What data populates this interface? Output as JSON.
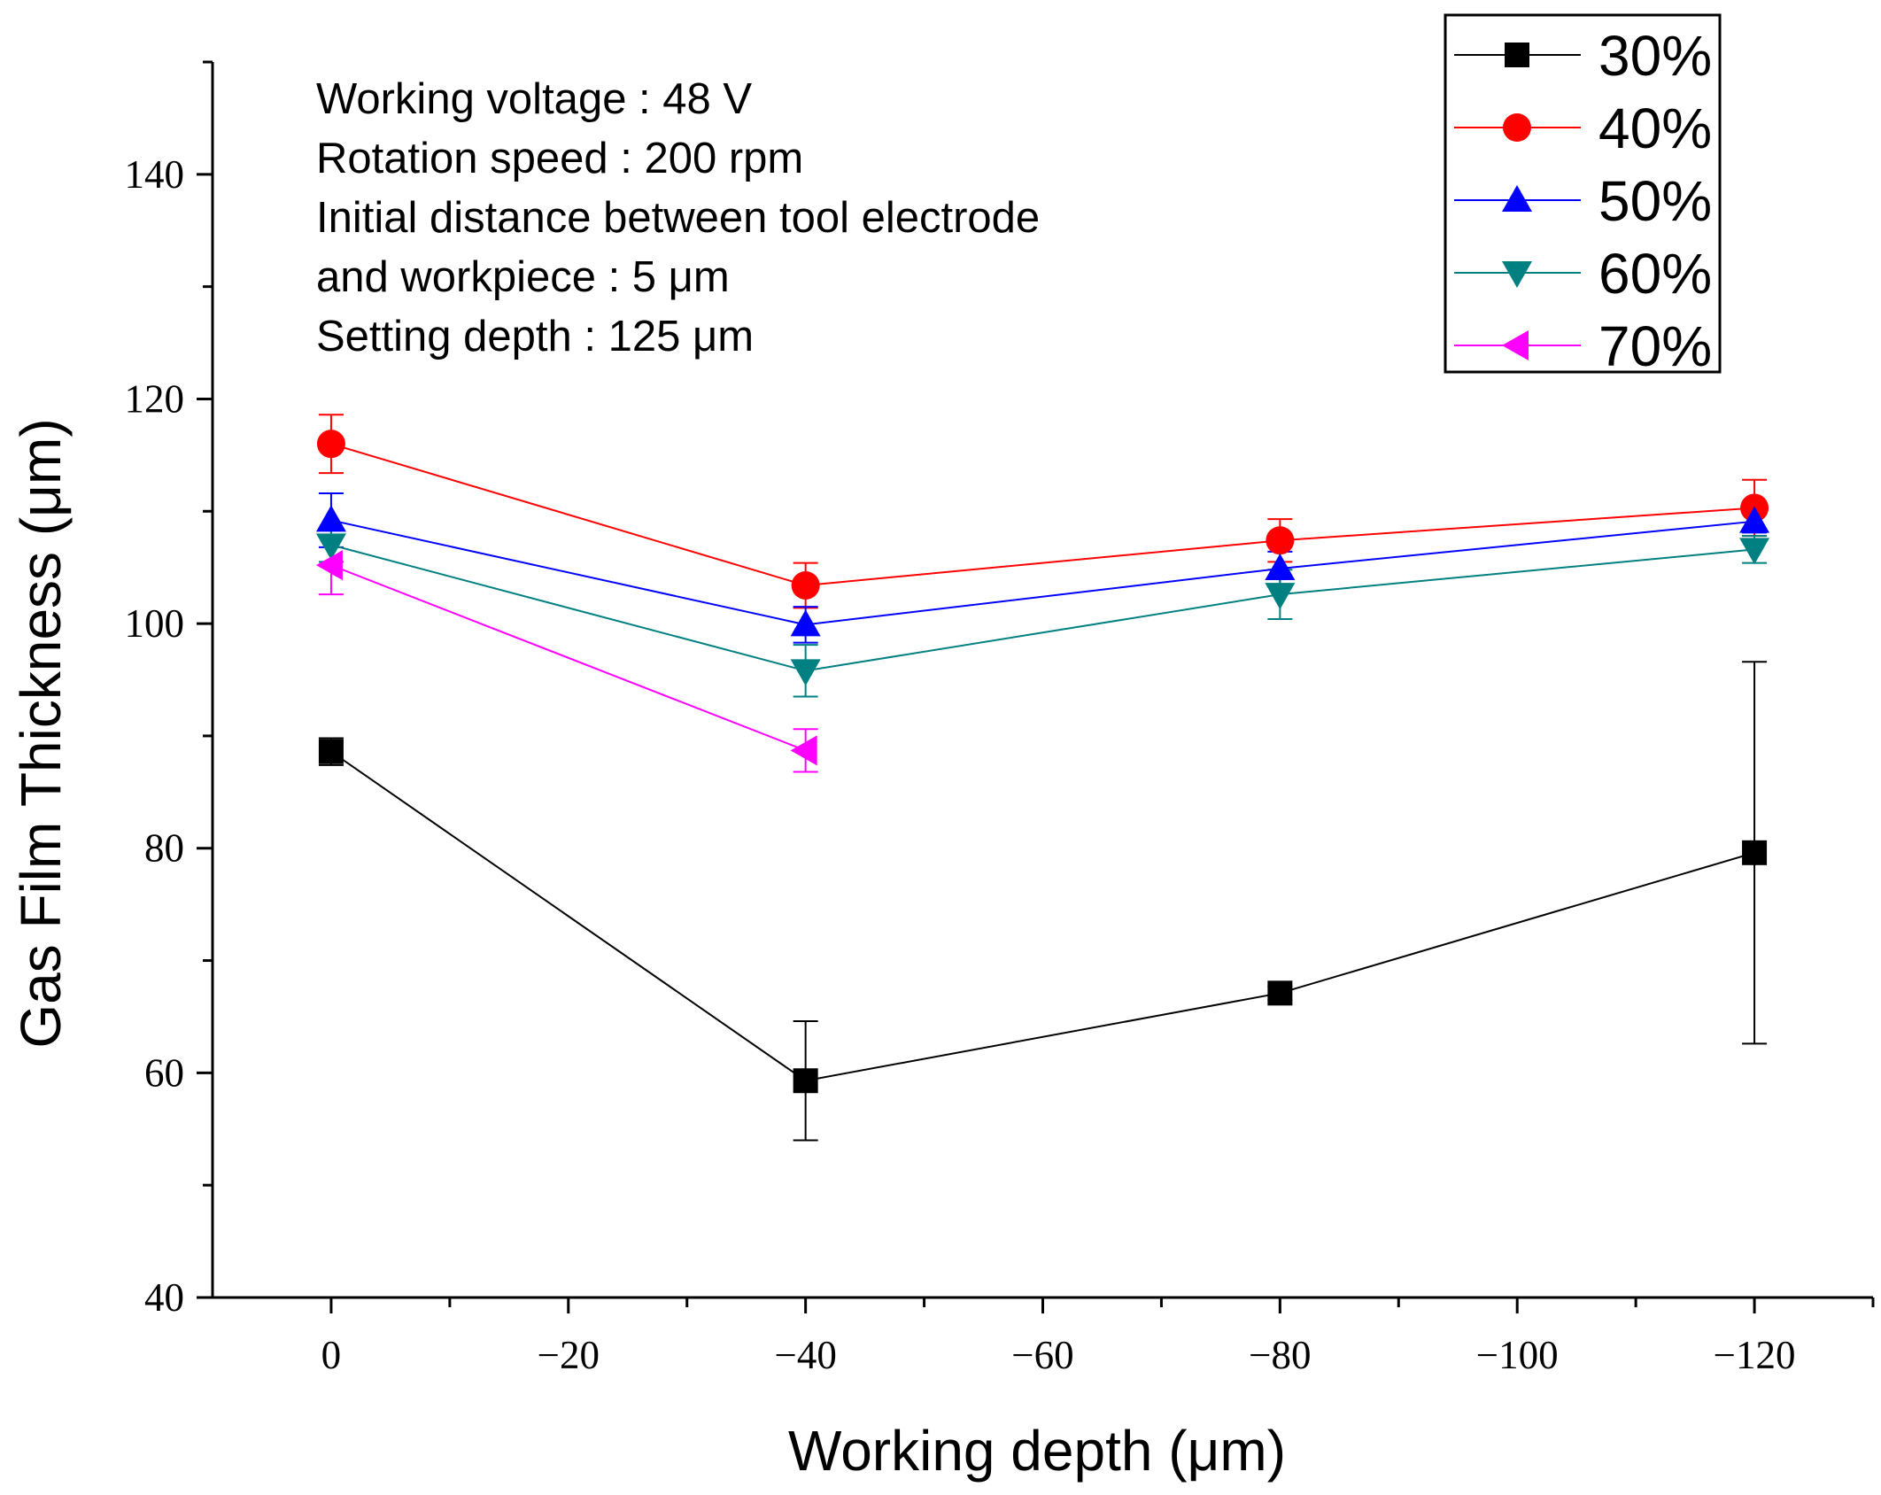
{
  "chart_data": {
    "type": "line",
    "title": "",
    "xlabel": "Working depth (μm)",
    "ylabel": "Gas Film Thickness (μm)",
    "x": [
      0,
      -40,
      -80,
      -120
    ],
    "xlim": [
      10,
      -130
    ],
    "ylim": [
      40,
      150
    ],
    "xticks": [
      0,
      -20,
      -40,
      -60,
      -80,
      -100,
      -120
    ],
    "xtick_labels": [
      "0",
      "−20",
      "−40",
      "−60",
      "−80",
      "−100",
      "−120"
    ],
    "yticks": [
      40,
      60,
      80,
      100,
      120,
      140
    ],
    "ytick_labels": [
      "40",
      "60",
      "80",
      "100",
      "120",
      "140"
    ],
    "grid": false,
    "legend_position": "top-right",
    "annotations": [
      "Working voltage : 48 V",
      "Rotation speed : 200 rpm",
      "Initial distance between tool electrode",
      "and workpiece : 5 μm",
      "Setting depth : 125 μm"
    ],
    "series": [
      {
        "name": "30%",
        "color": "#000000",
        "marker": "square",
        "x": [
          0,
          -40,
          -80,
          -120
        ],
        "values": [
          88.6,
          59.3,
          67.1,
          79.6
        ],
        "errors": [
          1.2,
          5.3,
          0.6,
          17.0
        ]
      },
      {
        "name": "40%",
        "color": "#ff0000",
        "marker": "circle",
        "x": [
          0,
          -40,
          -80,
          -120
        ],
        "values": [
          116.0,
          103.4,
          107.4,
          110.3
        ],
        "errors": [
          2.6,
          2.0,
          1.9,
          2.5
        ]
      },
      {
        "name": "50%",
        "color": "#0000ff",
        "marker": "triangle-up",
        "x": [
          0,
          -40,
          -80,
          -120
        ],
        "values": [
          109.2,
          99.9,
          104.9,
          109.1
        ],
        "errors": [
          2.4,
          1.6,
          1.5,
          1.0
        ]
      },
      {
        "name": "60%",
        "color": "#008080",
        "marker": "triangle-down",
        "x": [
          0,
          -40,
          -80,
          -120
        ],
        "values": [
          107.0,
          95.8,
          102.6,
          106.6
        ],
        "errors": [
          1.5,
          2.3,
          2.2,
          1.2
        ]
      },
      {
        "name": "70%",
        "color": "#ff00ff",
        "marker": "triangle-left",
        "x": [
          0,
          -40
        ],
        "values": [
          105.2,
          88.7
        ],
        "errors": [
          2.6,
          1.9
        ]
      }
    ]
  }
}
